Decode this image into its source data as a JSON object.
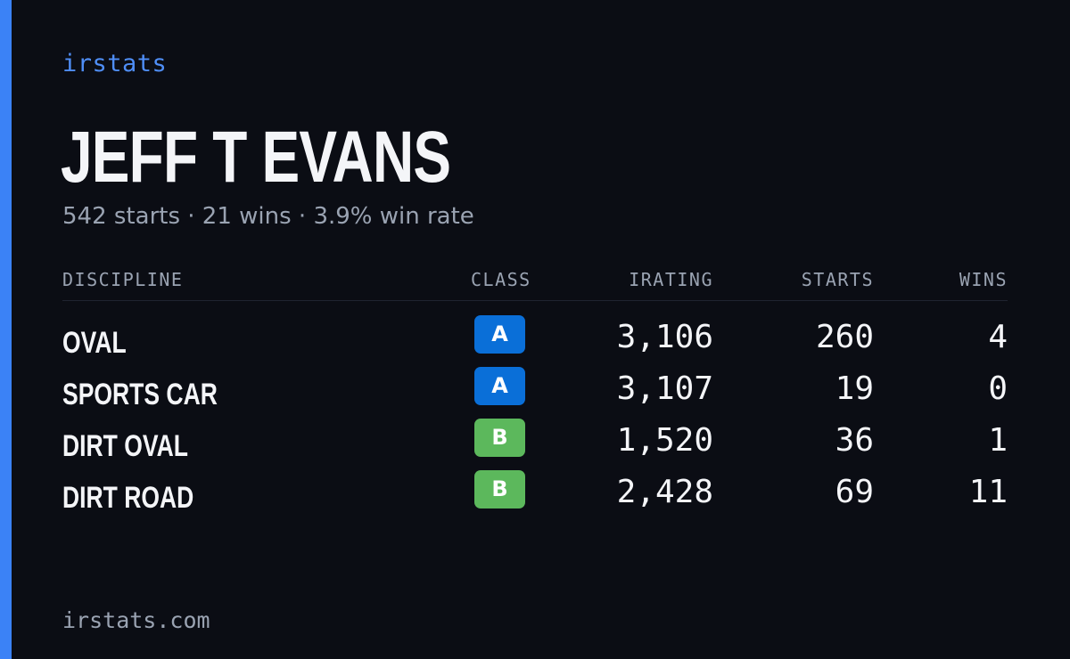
{
  "brand": "irstats",
  "driver": {
    "name": "JEFF T EVANS",
    "summary": "542 starts · 21 wins · 3.9% win rate"
  },
  "table": {
    "headers": {
      "discipline": "DISCIPLINE",
      "class": "CLASS",
      "irating": "IRATING",
      "starts": "STARTS",
      "wins": "WINS"
    },
    "rows": [
      {
        "discipline": "OVAL",
        "class": "A",
        "class_color": "#0a6fd8",
        "irating": "3,106",
        "starts": "260",
        "wins": "4"
      },
      {
        "discipline": "SPORTS CAR",
        "class": "A",
        "class_color": "#0a6fd8",
        "irating": "3,107",
        "starts": "19",
        "wins": "0"
      },
      {
        "discipline": "DIRT OVAL",
        "class": "B",
        "class_color": "#5cb85c",
        "irating": "1,520",
        "starts": "36",
        "wins": "1"
      },
      {
        "discipline": "DIRT ROAD",
        "class": "B",
        "class_color": "#5cb85c",
        "irating": "2,428",
        "starts": "69",
        "wins": "11"
      }
    ]
  },
  "footer": "irstats.com",
  "colors": {
    "background": "#0b0d14",
    "accent": "#3b82f6",
    "brand": "#4f8ef7",
    "muted": "#9aa3b2",
    "text": "#f4f5f8"
  }
}
